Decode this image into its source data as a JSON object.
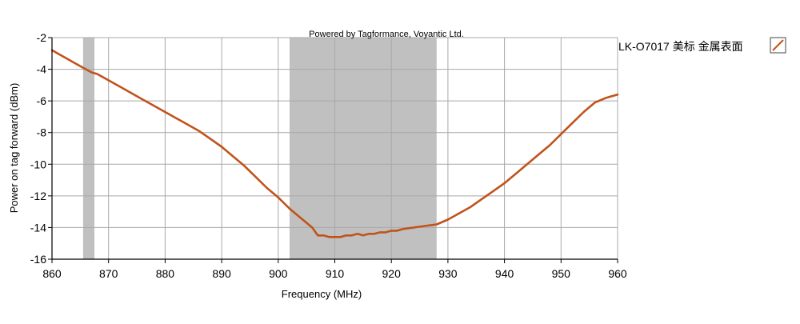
{
  "chart_data": {
    "type": "line",
    "credit": "Powered by Tagformance, Voyantic Ltd.",
    "xlabel": "Frequency (MHz)",
    "ylabel": "Power on tag forward (dBm)",
    "xlim": [
      860,
      960
    ],
    "ylim": [
      -16,
      -2
    ],
    "x_ticks": [
      860,
      870,
      880,
      890,
      900,
      910,
      920,
      930,
      940,
      950,
      960
    ],
    "y_ticks": [
      -2,
      -4,
      -6,
      -8,
      -10,
      -12,
      -14,
      -16
    ],
    "x_tick_labels": [
      "860",
      "870",
      "880",
      "890",
      "900",
      "910",
      "920",
      "930",
      "940",
      "950",
      "960"
    ],
    "y_tick_labels": [
      "-2",
      "-4",
      "-6",
      "-8",
      "-10",
      "-12",
      "-14",
      "-16"
    ],
    "grid": true,
    "legend_position": "top-right",
    "shaded_bands": [
      {
        "from": 865.5,
        "to": 867.5
      },
      {
        "from": 902,
        "to": 928
      }
    ],
    "series": [
      {
        "name": "LK-O7017 美标 金属表面",
        "color": "#c0531b",
        "x": [
          860,
          862,
          864,
          866,
          867,
          868,
          870,
          872,
          874,
          876,
          878,
          880,
          882,
          884,
          886,
          888,
          890,
          892,
          894,
          896,
          898,
          900,
          902,
          904,
          906,
          907,
          908,
          909,
          910,
          911,
          912,
          913,
          914,
          915,
          916,
          917,
          918,
          919,
          920,
          921,
          922,
          924,
          926,
          928,
          930,
          932,
          934,
          936,
          938,
          940,
          942,
          944,
          946,
          948,
          950,
          952,
          954,
          956,
          958,
          960
        ],
        "y": [
          -2.8,
          -3.2,
          -3.6,
          -4.0,
          -4.2,
          -4.3,
          -4.7,
          -5.1,
          -5.5,
          -5.9,
          -6.3,
          -6.7,
          -7.1,
          -7.5,
          -7.9,
          -8.4,
          -8.9,
          -9.5,
          -10.1,
          -10.8,
          -11.5,
          -12.1,
          -12.8,
          -13.4,
          -14.0,
          -14.5,
          -14.5,
          -14.6,
          -14.6,
          -14.6,
          -14.5,
          -14.5,
          -14.4,
          -14.5,
          -14.4,
          -14.4,
          -14.3,
          -14.3,
          -14.2,
          -14.2,
          -14.1,
          -14.0,
          -13.9,
          -13.8,
          -13.5,
          -13.1,
          -12.7,
          -12.2,
          -11.7,
          -11.2,
          -10.6,
          -10.0,
          -9.4,
          -8.8,
          -8.1,
          -7.4,
          -6.7,
          -6.1,
          -5.8,
          -5.6
        ]
      }
    ]
  }
}
